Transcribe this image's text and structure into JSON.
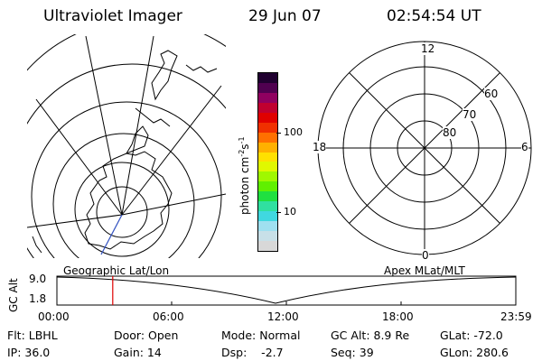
{
  "header": {
    "instrument": "Ultraviolet Imager",
    "date": "29 Jun 07",
    "time": "02:54:54 UT"
  },
  "left_map": {
    "caption": "Geographic Lat/Lon"
  },
  "right_map": {
    "caption": "Apex MLat/MLT",
    "mlt_labels": {
      "top": "12",
      "bottom": "0",
      "left": "18",
      "right": "6"
    },
    "lat_labels": [
      "60",
      "70",
      "80"
    ]
  },
  "colorbar": {
    "unit_label": "photon cm",
    "unit_sup1": "-2",
    "unit_mid": "s",
    "unit_sup2": "-1",
    "tick_100": "100",
    "tick_10": "10",
    "colors": [
      "#d8d8d8",
      "#c8e0e8",
      "#9fe0f0",
      "#40d8e0",
      "#30e0a0",
      "#20e040",
      "#60f000",
      "#a0f800",
      "#e0f800",
      "#ffe000",
      "#ffb000",
      "#ff7000",
      "#f03000",
      "#e00000",
      "#c00030",
      "#900060",
      "#500050",
      "#200030"
    ]
  },
  "timeline": {
    "axis_label": "GC Alt",
    "y_top": "9.0",
    "y_bottom": "1.8",
    "x_ticks": [
      "00:00",
      "06:00",
      "12:00",
      "18:00",
      "23:59"
    ],
    "cursor_time_hours": 2.92,
    "cursor_color": "#e00000"
  },
  "info": {
    "flt": "Flt: LBHL",
    "ip": "IP: 36.0",
    "door": "Door: Open",
    "gain": "Gain: 14",
    "mode": "Mode: Normal",
    "dsp": "Dsp:    -2.7",
    "gc_alt": "GC Alt: 8.9 Re",
    "seq": "Seq: 39",
    "glat": "GLat: -72.0",
    "glon": "GLon: 280.6"
  }
}
